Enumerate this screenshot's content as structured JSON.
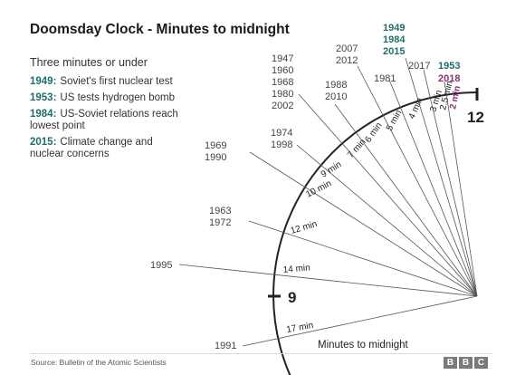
{
  "title": "Doomsday Clock - Minutes to midnight",
  "subtitle": "Three minutes or under",
  "legend": [
    {
      "year": "1949:",
      "text": "Soviet's first nuclear test"
    },
    {
      "year": "1953:",
      "text": "US tests hydrogen bomb"
    },
    {
      "year": "1984:",
      "text": "US-Soviet relations reach lowest point"
    },
    {
      "year": "2015:",
      "text": "Climate change and nuclear concerns"
    }
  ],
  "clock": {
    "twelve_label": "12",
    "nine_label": "9",
    "caption": "Minutes to midnight"
  },
  "minute_labels": [
    "2 min",
    "2.5 min",
    "3 min",
    "4 min",
    "5 min",
    "6 min",
    "7 min",
    "9 min",
    "10 min",
    "12 min",
    "14 min",
    "17 min"
  ],
  "year_labels": {
    "y1949_1984_2015": [
      "1949",
      "1984",
      "2015"
    ],
    "y2017": "2017",
    "y1953_2018": [
      "1953",
      "2018"
    ],
    "y1981": "1981",
    "y2007_2012": [
      "2007",
      "2012"
    ],
    "y1988_2010": [
      "1988",
      "2010"
    ],
    "y1947_group": [
      "1947",
      "1960",
      "1968",
      "1980",
      "2002"
    ],
    "y1974_1998": [
      "1974",
      "1998"
    ],
    "y1969_1990": [
      "1969",
      "1990"
    ],
    "y1963_1972": [
      "1963",
      "1972"
    ],
    "y1995": "1995",
    "y1991": "1991"
  },
  "colors": {
    "teal": "#1f6e6a",
    "purple": "#8b2f74",
    "line": "#555555",
    "dark": "#222222"
  },
  "footer": {
    "source": "Source: Bulletin of the Atomic Scientists",
    "bbc": [
      "B",
      "B",
      "C"
    ]
  }
}
